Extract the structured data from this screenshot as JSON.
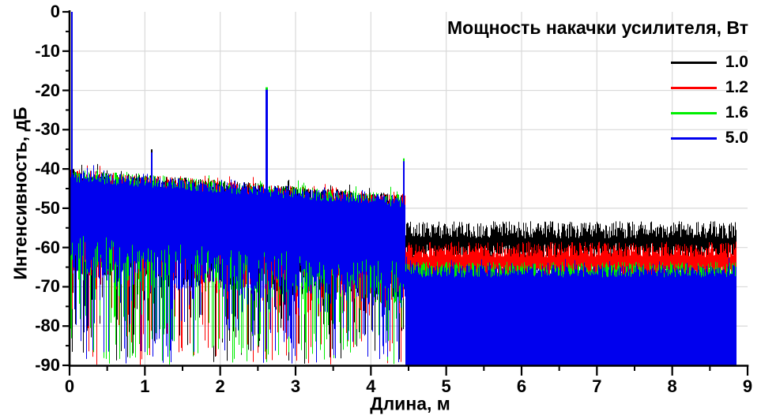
{
  "chart_data": {
    "type": "line",
    "title": "",
    "xlabel": "Длина, м",
    "ylabel": "Интенсивность, дБ",
    "xlim": [
      0,
      9
    ],
    "ylim": [
      -90,
      0
    ],
    "x_data_range": [
      0,
      8.85
    ],
    "x_major_ticks": [
      0,
      1,
      2,
      3,
      4,
      5,
      6,
      7,
      8,
      9
    ],
    "x_minor_step": 0.5,
    "y_major_ticks": [
      0,
      -10,
      -20,
      -30,
      -40,
      -50,
      -60,
      -70,
      -80,
      -90
    ],
    "y_minor_step": 5,
    "grid": true,
    "grid_color": "#d9d9d9",
    "axis_color": "#000000",
    "background_color": "#ffffff",
    "legend": {
      "title": "Мощность накачки усилителя, Вт",
      "position": "top-right",
      "entries": [
        {
          "label": "1.0",
          "color": "#000000"
        },
        {
          "label": "1.2",
          "color": "#ff0000"
        },
        {
          "label": "1.6",
          "color": "#00ee00"
        },
        {
          "label": "5.0",
          "color": "#0000ee"
        }
      ]
    },
    "series": [
      {
        "name": "1.0",
        "color": "#000000",
        "regions": [
          {
            "style": "noise",
            "x": [
              0,
              4.45
            ],
            "top_start": -41.5,
            "top_end": -48.0,
            "top_jitter": 1.6,
            "top_spike_prob": 0.1,
            "top_spike_add": 1.8,
            "solid_depth": [
              16,
              26
            ],
            "deep_spike_prob": 0.28,
            "deep_spike_range": [
              -68,
              -90
            ]
          },
          {
            "style": "band",
            "x": [
              4.45,
              8.85
            ],
            "top_mean": -55.5,
            "top_jitter": 2.2,
            "band_depth": 5.5,
            "band_depth_jitter": 2.5
          }
        ],
        "peaks": [
          {
            "x": 1.08,
            "y": -35.0,
            "w": 2
          },
          {
            "x": 4.43,
            "y": -38.5,
            "w": 2
          }
        ]
      },
      {
        "name": "1.2",
        "color": "#ff0000",
        "regions": [
          {
            "style": "noise",
            "x": [
              0,
              4.45
            ],
            "top_start": -41.6,
            "top_end": -48.1,
            "top_jitter": 1.6,
            "top_spike_prob": 0.1,
            "top_spike_add": 1.8,
            "solid_depth": [
              16,
              26
            ],
            "deep_spike_prob": 0.28,
            "deep_spike_range": [
              -68,
              -90
            ]
          },
          {
            "style": "band",
            "x": [
              4.45,
              8.85
            ],
            "top_mean": -60.5,
            "top_jitter": 2.0,
            "band_depth": 6.0,
            "band_depth_jitter": 2.5
          }
        ],
        "peaks": [
          {
            "x": 2.6,
            "y": -20.3,
            "w": 2
          }
        ]
      },
      {
        "name": "1.6",
        "color": "#00ee00",
        "regions": [
          {
            "style": "noise",
            "x": [
              0,
              4.45
            ],
            "top_start": -41.7,
            "top_end": -48.2,
            "top_jitter": 1.7,
            "top_spike_prob": 0.1,
            "top_spike_add": 1.8,
            "solid_depth": [
              16,
              26
            ],
            "deep_spike_prob": 0.3,
            "deep_spike_range": [
              -68,
              -90
            ]
          },
          {
            "style": "band",
            "x": [
              4.45,
              8.85
            ],
            "top_mean": -65.3,
            "top_jitter": 1.7,
            "band_depth": 6.0,
            "band_depth_jitter": 2.0
          }
        ],
        "peaks": [
          {
            "x": 2.6,
            "y": -19.2,
            "w": 3
          },
          {
            "x": 4.43,
            "y": -37.3,
            "w": 2
          }
        ]
      },
      {
        "name": "5.0",
        "color": "#0000ee",
        "regions": [
          {
            "style": "noise",
            "x": [
              0,
              4.45
            ],
            "top_start": -41.8,
            "top_end": -48.3,
            "top_jitter": 1.5,
            "top_spike_prob": 0.1,
            "top_spike_add": 1.6,
            "solid_depth": [
              16,
              26
            ],
            "deep_spike_prob": 0.3,
            "deep_spike_range": [
              -68,
              -90
            ]
          },
          {
            "style": "band",
            "x": [
              4.45,
              8.85
            ],
            "top_mean": -66.0,
            "top_jitter": 1.6,
            "bottom": -90,
            "top_spike_prob": 0.12,
            "top_spike_add": 2.5
          }
        ],
        "peaks": [
          {
            "x": 0.02,
            "y": 0,
            "w": 2
          },
          {
            "x": 1.08,
            "y": -35.8,
            "w": 2
          },
          {
            "x": 2.6,
            "y": -19.8,
            "w": 3
          },
          {
            "x": 4.43,
            "y": -38.0,
            "w": 2
          }
        ]
      }
    ]
  }
}
